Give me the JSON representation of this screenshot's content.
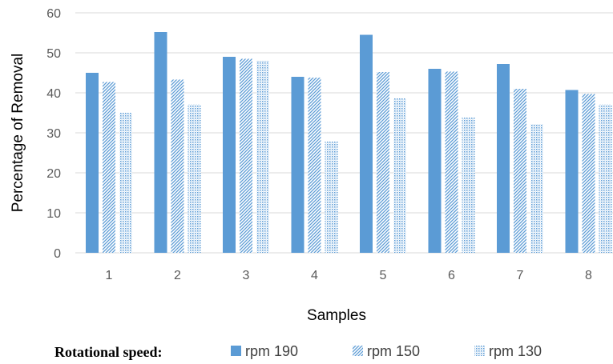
{
  "chart_data": {
    "type": "bar",
    "categories": [
      "1",
      "2",
      "3",
      "4",
      "5",
      "6",
      "7",
      "8"
    ],
    "series": [
      {
        "name": "rpm 190",
        "values": [
          45,
          55.2,
          49,
          44,
          54.5,
          46,
          47.2,
          40.7
        ],
        "color": "#5b9bd5",
        "pattern": "solid"
      },
      {
        "name": "rpm 150",
        "values": [
          42.7,
          43.3,
          48.5,
          43.8,
          45.2,
          45.3,
          41,
          39.7
        ],
        "color": "#5b9bd5",
        "pattern": "diagonal-hatch"
      },
      {
        "name": "rpm 130",
        "values": [
          35,
          37.1,
          48,
          27.8,
          38.7,
          33.8,
          32.2,
          37.1
        ],
        "color": "#5b9bd5",
        "pattern": "dotted"
      }
    ],
    "xlabel": "Samples",
    "ylabel": "Percentage of Removal",
    "ylim": [
      0,
      60
    ],
    "yticks": [
      0,
      10,
      20,
      30,
      40,
      50,
      60
    ],
    "grid": true,
    "legend_position": "bottom",
    "legend_title": "Rotational speed:"
  }
}
